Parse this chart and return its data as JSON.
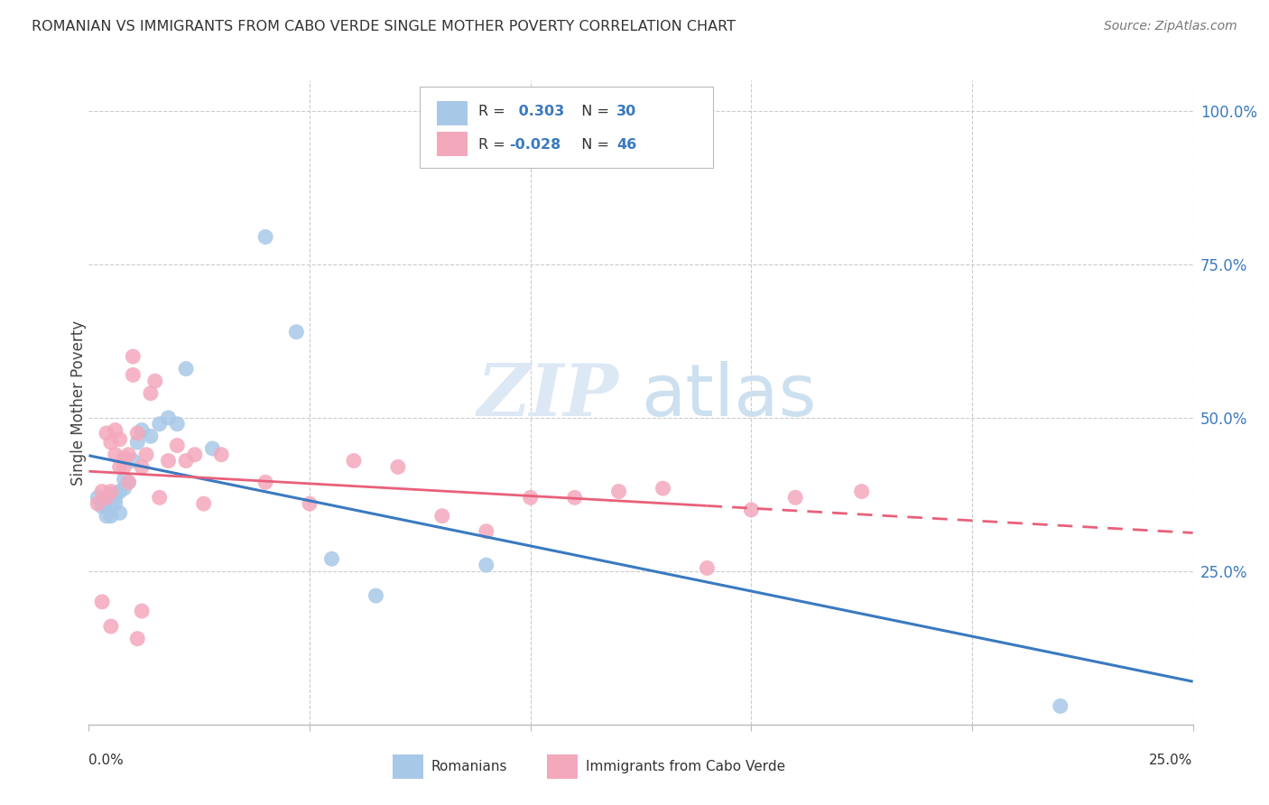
{
  "title": "ROMANIAN VS IMMIGRANTS FROM CABO VERDE SINGLE MOTHER POVERTY CORRELATION CHART",
  "source": "Source: ZipAtlas.com",
  "ylabel": "Single Mother Poverty",
  "ytick_labels": [
    "100.0%",
    "75.0%",
    "50.0%",
    "25.0%"
  ],
  "ytick_values": [
    1.0,
    0.75,
    0.5,
    0.25
  ],
  "xlim": [
    0.0,
    0.25
  ],
  "ylim": [
    0.0,
    1.05
  ],
  "legend_r_romanian": "0.303",
  "legend_n_romanian": "30",
  "legend_r_caboverde": "-0.028",
  "legend_n_caboverde": "46",
  "color_romanian": "#a8c8e8",
  "color_caboverde": "#f4a8bc",
  "color_blue_line": "#3a7abf",
  "color_pink_line": "#e8607a",
  "watermark_zip": "ZIP",
  "watermark_atlas": "atlas",
  "romanian_x": [
    0.002,
    0.003,
    0.003,
    0.004,
    0.004,
    0.005,
    0.005,
    0.005,
    0.006,
    0.006,
    0.007,
    0.007,
    0.008,
    0.008,
    0.009,
    0.01,
    0.011,
    0.012,
    0.014,
    0.016,
    0.018,
    0.02,
    0.022,
    0.028,
    0.04,
    0.047,
    0.055,
    0.065,
    0.09,
    0.22
  ],
  "romanian_y": [
    0.37,
    0.36,
    0.355,
    0.365,
    0.34,
    0.375,
    0.355,
    0.34,
    0.37,
    0.36,
    0.38,
    0.345,
    0.4,
    0.385,
    0.395,
    0.43,
    0.46,
    0.48,
    0.47,
    0.49,
    0.5,
    0.49,
    0.58,
    0.45,
    0.795,
    0.64,
    0.27,
    0.21,
    0.26,
    0.03
  ],
  "caboverde_x": [
    0.002,
    0.003,
    0.003,
    0.004,
    0.004,
    0.005,
    0.005,
    0.005,
    0.006,
    0.006,
    0.007,
    0.007,
    0.008,
    0.008,
    0.009,
    0.009,
    0.01,
    0.01,
    0.011,
    0.011,
    0.012,
    0.012,
    0.013,
    0.014,
    0.015,
    0.016,
    0.018,
    0.02,
    0.022,
    0.024,
    0.026,
    0.03,
    0.04,
    0.05,
    0.06,
    0.07,
    0.08,
    0.09,
    0.1,
    0.11,
    0.12,
    0.13,
    0.14,
    0.15,
    0.16,
    0.175
  ],
  "caboverde_y": [
    0.36,
    0.38,
    0.2,
    0.37,
    0.475,
    0.46,
    0.38,
    0.16,
    0.48,
    0.44,
    0.465,
    0.42,
    0.435,
    0.42,
    0.44,
    0.395,
    0.6,
    0.57,
    0.475,
    0.14,
    0.185,
    0.42,
    0.44,
    0.54,
    0.56,
    0.37,
    0.43,
    0.455,
    0.43,
    0.44,
    0.36,
    0.44,
    0.395,
    0.36,
    0.43,
    0.42,
    0.34,
    0.315,
    0.37,
    0.37,
    0.38,
    0.385,
    0.255,
    0.35,
    0.37,
    0.38
  ]
}
